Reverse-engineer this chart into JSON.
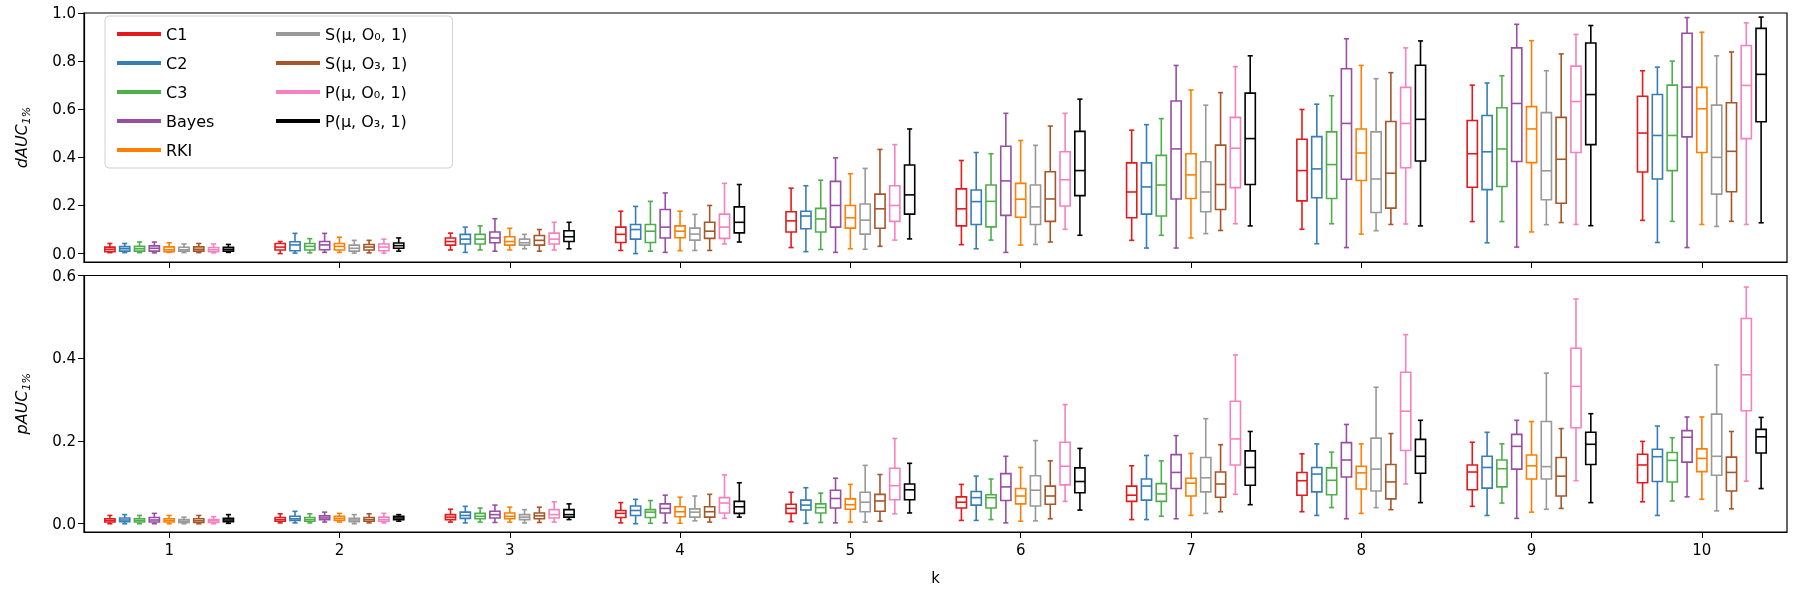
{
  "chart_data": [
    {
      "type": "box",
      "ylabel": "dAUC$_{1%}$",
      "categories": [
        "1",
        "2",
        "3",
        "4",
        "5",
        "6",
        "7",
        "8",
        "9",
        "10"
      ],
      "ylim": [
        -0.035,
        1.0
      ],
      "yticks": [
        {
          "value": 0,
          "label": "0.0"
        },
        {
          "value": 0.2,
          "label": "0.2"
        },
        {
          "value": 0.4,
          "label": "0.4"
        },
        {
          "value": 0.6,
          "label": "0.6"
        },
        {
          "value": 0.8,
          "label": "0.8"
        },
        {
          "value": 1,
          "label": "1.0"
        }
      ],
      "tick_labels": "y",
      "legend": "top left",
      "grid": false,
      "series": [
        {
          "name": "C1",
          "color": "#e41a1c",
          "boxes": [
            {
              "low": 0.004,
              "q1": 0.008,
              "median": 0.018,
              "q3": 0.027,
              "high": 0.042
            },
            {
              "low": 0.0,
              "q1": 0.015,
              "median": 0.027,
              "q3": 0.042,
              "high": 0.05
            },
            {
              "low": 0.015,
              "q1": 0.035,
              "median": 0.05,
              "q3": 0.065,
              "high": 0.085
            },
            {
              "low": 0.013,
              "q1": 0.046,
              "median": 0.08,
              "q3": 0.11,
              "high": 0.176
            },
            {
              "low": 0.025,
              "q1": 0.09,
              "median": 0.136,
              "q3": 0.174,
              "high": 0.272
            },
            {
              "low": 0.037,
              "q1": 0.115,
              "median": 0.186,
              "q3": 0.269,
              "high": 0.387
            },
            {
              "low": 0.055,
              "q1": 0.149,
              "median": 0.256,
              "q3": 0.377,
              "high": 0.513
            },
            {
              "low": 0.101,
              "q1": 0.219,
              "median": 0.345,
              "q3": 0.475,
              "high": 0.599
            },
            {
              "low": 0.133,
              "q1": 0.276,
              "median": 0.415,
              "q3": 0.553,
              "high": 0.7
            },
            {
              "low": 0.138,
              "q1": 0.339,
              "median": 0.501,
              "q3": 0.654,
              "high": 0.76
            }
          ]
        },
        {
          "name": "C2",
          "color": "#377eb8",
          "boxes": [
            {
              "low": 0.004,
              "q1": 0.01,
              "median": 0.02,
              "q3": 0.029,
              "high": 0.042
            },
            {
              "low": 0.002,
              "q1": 0.012,
              "median": 0.036,
              "q3": 0.049,
              "high": 0.084
            },
            {
              "low": 0.005,
              "q1": 0.04,
              "median": 0.06,
              "q3": 0.08,
              "high": 0.11
            },
            {
              "low": 0.0,
              "q1": 0.06,
              "median": 0.1,
              "q3": 0.121,
              "high": 0.196
            },
            {
              "low": 0.008,
              "q1": 0.103,
              "median": 0.156,
              "q3": 0.176,
              "high": 0.282
            },
            {
              "low": 0.02,
              "q1": 0.121,
              "median": 0.216,
              "q3": 0.264,
              "high": 0.42
            },
            {
              "low": 0.023,
              "q1": 0.164,
              "median": 0.277,
              "q3": 0.377,
              "high": 0.536
            },
            {
              "low": 0.041,
              "q1": 0.232,
              "median": 0.352,
              "q3": 0.486,
              "high": 0.621
            },
            {
              "low": 0.045,
              "q1": 0.266,
              "median": 0.423,
              "q3": 0.574,
              "high": 0.709
            },
            {
              "low": 0.046,
              "q1": 0.31,
              "median": 0.491,
              "q3": 0.661,
              "high": 0.775
            }
          ]
        },
        {
          "name": "C3",
          "color": "#4daf4a",
          "boxes": [
            {
              "low": 0.004,
              "q1": 0.01,
              "median": 0.02,
              "q3": 0.03,
              "high": 0.048
            },
            {
              "low": 0.003,
              "q1": 0.015,
              "median": 0.03,
              "q3": 0.042,
              "high": 0.062
            },
            {
              "low": 0.015,
              "q1": 0.04,
              "median": 0.06,
              "q3": 0.08,
              "high": 0.115
            },
            {
              "low": 0.01,
              "q1": 0.046,
              "median": 0.093,
              "q3": 0.121,
              "high": 0.217
            },
            {
              "low": 0.017,
              "q1": 0.09,
              "median": 0.144,
              "q3": 0.188,
              "high": 0.305
            },
            {
              "low": 0.056,
              "q1": 0.111,
              "median": 0.217,
              "q3": 0.285,
              "high": 0.415
            },
            {
              "low": 0.076,
              "q1": 0.156,
              "median": 0.285,
              "q3": 0.408,
              "high": 0.561
            },
            {
              "low": 0.124,
              "q1": 0.229,
              "median": 0.37,
              "q3": 0.506,
              "high": 0.656
            },
            {
              "low": 0.133,
              "q1": 0.279,
              "median": 0.435,
              "q3": 0.606,
              "high": 0.739
            },
            {
              "low": 0.134,
              "q1": 0.345,
              "median": 0.491,
              "q3": 0.7,
              "high": 0.8
            }
          ]
        },
        {
          "name": "Bayes",
          "color": "#984ea3",
          "boxes": [
            {
              "low": 0.003,
              "q1": 0.01,
              "median": 0.022,
              "q3": 0.032,
              "high": 0.048
            },
            {
              "low": 0.005,
              "q1": 0.016,
              "median": 0.036,
              "q3": 0.05,
              "high": 0.084
            },
            {
              "low": 0.01,
              "q1": 0.045,
              "median": 0.065,
              "q3": 0.09,
              "high": 0.145
            },
            {
              "low": 0.005,
              "q1": 0.065,
              "median": 0.11,
              "q3": 0.183,
              "high": 0.252
            },
            {
              "low": 0.005,
              "q1": 0.11,
              "median": 0.2,
              "q3": 0.3,
              "high": 0.398
            },
            {
              "low": 0.005,
              "q1": 0.159,
              "median": 0.302,
              "q3": 0.446,
              "high": 0.583
            },
            {
              "low": 0.023,
              "q1": 0.227,
              "median": 0.435,
              "q3": 0.634,
              "high": 0.782
            },
            {
              "low": 0.025,
              "q1": 0.309,
              "median": 0.541,
              "q3": 0.768,
              "high": 0.893
            },
            {
              "low": 0.027,
              "q1": 0.383,
              "median": 0.624,
              "q3": 0.855,
              "high": 0.953
            },
            {
              "low": 0.025,
              "q1": 0.485,
              "median": 0.692,
              "q3": 0.916,
              "high": 0.981
            }
          ]
        },
        {
          "name": "RKI",
          "color": "#ff7f00",
          "boxes": [
            {
              "low": 0.005,
              "q1": 0.008,
              "median": 0.016,
              "q3": 0.028,
              "high": 0.045
            },
            {
              "low": 0.005,
              "q1": 0.015,
              "median": 0.03,
              "q3": 0.042,
              "high": 0.068
            },
            {
              "low": 0.015,
              "q1": 0.035,
              "median": 0.05,
              "q3": 0.07,
              "high": 0.105
            },
            {
              "low": 0.012,
              "q1": 0.066,
              "median": 0.093,
              "q3": 0.115,
              "high": 0.176
            },
            {
              "low": 0.02,
              "q1": 0.106,
              "median": 0.149,
              "q3": 0.2,
              "high": 0.332
            },
            {
              "low": 0.035,
              "q1": 0.151,
              "median": 0.226,
              "q3": 0.292,
              "high": 0.47
            },
            {
              "low": 0.065,
              "q1": 0.229,
              "median": 0.327,
              "q3": 0.415,
              "high": 0.68
            },
            {
              "low": 0.081,
              "q1": 0.304,
              "median": 0.418,
              "q3": 0.518,
              "high": 0.782
            },
            {
              "low": 0.09,
              "q1": 0.378,
              "median": 0.518,
              "q3": 0.611,
              "high": 0.885
            },
            {
              "low": 0.121,
              "q1": 0.42,
              "median": 0.602,
              "q3": 0.691,
              "high": 0.92
            }
          ]
        },
        {
          "name": "S(μ, O₀, 1)",
          "color": "#999999",
          "boxes": [
            {
              "low": 0.004,
              "q1": 0.01,
              "median": 0.016,
              "q3": 0.026,
              "high": 0.04
            },
            {
              "low": 0.002,
              "q1": 0.01,
              "median": 0.022,
              "q3": 0.035,
              "high": 0.055
            },
            {
              "low": 0.02,
              "q1": 0.035,
              "median": 0.045,
              "q3": 0.06,
              "high": 0.08
            },
            {
              "low": 0.013,
              "q1": 0.056,
              "median": 0.081,
              "q3": 0.106,
              "high": 0.163
            },
            {
              "low": 0.018,
              "q1": 0.081,
              "median": 0.139,
              "q3": 0.206,
              "high": 0.354
            },
            {
              "low": 0.038,
              "q1": 0.121,
              "median": 0.194,
              "q3": 0.285,
              "high": 0.45
            },
            {
              "low": 0.083,
              "q1": 0.174,
              "median": 0.256,
              "q3": 0.382,
              "high": 0.617
            },
            {
              "low": 0.095,
              "q1": 0.171,
              "median": 0.31,
              "q3": 0.506,
              "high": 0.727
            },
            {
              "low": 0.12,
              "q1": 0.224,
              "median": 0.344,
              "q3": 0.586,
              "high": 0.76
            },
            {
              "low": 0.113,
              "q1": 0.247,
              "median": 0.4,
              "q3": 0.617,
              "high": 0.822
            }
          ]
        },
        {
          "name": "S(μ, O₃, 1)",
          "color": "#a65628",
          "boxes": [
            {
              "low": 0.004,
              "q1": 0.01,
              "median": 0.018,
              "q3": 0.028,
              "high": 0.042
            },
            {
              "low": 0.003,
              "q1": 0.015,
              "median": 0.027,
              "q3": 0.038,
              "high": 0.055
            },
            {
              "low": 0.01,
              "q1": 0.035,
              "median": 0.055,
              "q3": 0.075,
              "high": 0.1
            },
            {
              "low": 0.013,
              "q1": 0.063,
              "median": 0.093,
              "q3": 0.13,
              "high": 0.2
            },
            {
              "low": 0.03,
              "q1": 0.105,
              "median": 0.186,
              "q3": 0.247,
              "high": 0.433
            },
            {
              "low": 0.048,
              "q1": 0.134,
              "median": 0.227,
              "q3": 0.34,
              "high": 0.53
            },
            {
              "low": 0.096,
              "q1": 0.183,
              "median": 0.287,
              "q3": 0.451,
              "high": 0.669
            },
            {
              "low": 0.121,
              "q1": 0.189,
              "median": 0.334,
              "q3": 0.549,
              "high": 0.752
            },
            {
              "low": 0.129,
              "q1": 0.209,
              "median": 0.392,
              "q3": 0.566,
              "high": 0.83
            },
            {
              "low": 0.134,
              "q1": 0.257,
              "median": 0.425,
              "q3": 0.627,
              "high": 0.838
            }
          ]
        },
        {
          "name": "P(μ, O₀, 1)",
          "color": "#f781bf",
          "boxes": [
            {
              "low": 0.003,
              "q1": 0.008,
              "median": 0.016,
              "q3": 0.025,
              "high": 0.04
            },
            {
              "low": 0.002,
              "q1": 0.012,
              "median": 0.027,
              "q3": 0.04,
              "high": 0.06
            },
            {
              "low": 0.015,
              "q1": 0.04,
              "median": 0.06,
              "q3": 0.085,
              "high": 0.13
            },
            {
              "low": 0.04,
              "q1": 0.063,
              "median": 0.11,
              "q3": 0.164,
              "high": 0.292
            },
            {
              "low": 0.056,
              "q1": 0.134,
              "median": 0.2,
              "q3": 0.282,
              "high": 0.453
            },
            {
              "low": 0.101,
              "q1": 0.198,
              "median": 0.307,
              "q3": 0.423,
              "high": 0.583
            },
            {
              "low": 0.124,
              "q1": 0.274,
              "median": 0.438,
              "q3": 0.566,
              "high": 0.777
            },
            {
              "low": 0.123,
              "q1": 0.357,
              "median": 0.541,
              "q3": 0.691,
              "high": 0.855
            },
            {
              "low": 0.121,
              "q1": 0.42,
              "median": 0.632,
              "q3": 0.779,
              "high": 0.911
            },
            {
              "low": 0.121,
              "q1": 0.478,
              "median": 0.699,
              "q3": 0.865,
              "high": 0.959
            }
          ]
        },
        {
          "name": "P(μ, O₃, 1)",
          "color": "#000000",
          "boxes": [
            {
              "low": 0.005,
              "q1": 0.01,
              "median": 0.018,
              "q3": 0.026,
              "high": 0.038
            },
            {
              "low": 0.01,
              "q1": 0.022,
              "median": 0.033,
              "q3": 0.044,
              "high": 0.065
            },
            {
              "low": 0.02,
              "q1": 0.05,
              "median": 0.07,
              "q3": 0.095,
              "high": 0.13
            },
            {
              "low": 0.048,
              "q1": 0.086,
              "median": 0.13,
              "q3": 0.194,
              "high": 0.287
            },
            {
              "low": 0.061,
              "q1": 0.164,
              "median": 0.244,
              "q3": 0.368,
              "high": 0.518
            },
            {
              "low": 0.076,
              "q1": 0.241,
              "median": 0.345,
              "q3": 0.508,
              "high": 0.642
            },
            {
              "low": 0.115,
              "q1": 0.287,
              "median": 0.478,
              "q3": 0.667,
              "high": 0.822
            },
            {
              "low": 0.115,
              "q1": 0.385,
              "median": 0.558,
              "q3": 0.783,
              "high": 0.884
            },
            {
              "low": 0.116,
              "q1": 0.453,
              "median": 0.661,
              "q3": 0.875,
              "high": 0.948
            },
            {
              "low": 0.128,
              "q1": 0.548,
              "median": 0.745,
              "q3": 0.936,
              "high": 0.983
            }
          ]
        }
      ]
    },
    {
      "type": "box",
      "ylabel": "pAUC$_{1%}$",
      "xlabel": "k",
      "categories": [
        "1",
        "2",
        "3",
        "4",
        "5",
        "6",
        "7",
        "8",
        "9",
        "10"
      ],
      "ylim": [
        -0.02,
        0.6
      ],
      "yticks": [
        {
          "value": 0,
          "label": "0.0"
        },
        {
          "value": 0.2,
          "label": "0.2"
        },
        {
          "value": 0.4,
          "label": "0.4"
        },
        {
          "value": 0.6,
          "label": "0.6"
        }
      ],
      "grid": false,
      "series": [
        {
          "color": "#e41a1c",
          "boxes": [
            {
              "low": 0.0,
              "q1": 0.004,
              "median": 0.008,
              "q3": 0.012,
              "high": 0.02
            },
            {
              "low": 0.002,
              "q1": 0.006,
              "median": 0.01,
              "q3": 0.015,
              "high": 0.024
            },
            {
              "low": 0.004,
              "q1": 0.01,
              "median": 0.016,
              "q3": 0.022,
              "high": 0.035
            },
            {
              "low": 0.002,
              "q1": 0.015,
              "median": 0.025,
              "q3": 0.032,
              "high": 0.051
            },
            {
              "low": 0.005,
              "q1": 0.025,
              "median": 0.037,
              "q3": 0.047,
              "high": 0.076
            },
            {
              "low": 0.008,
              "q1": 0.038,
              "median": 0.052,
              "q3": 0.065,
              "high": 0.095
            },
            {
              "low": 0.01,
              "q1": 0.054,
              "median": 0.069,
              "q3": 0.091,
              "high": 0.14
            },
            {
              "low": 0.029,
              "q1": 0.069,
              "median": 0.104,
              "q3": 0.124,
              "high": 0.169
            },
            {
              "low": 0.042,
              "q1": 0.082,
              "median": 0.125,
              "q3": 0.142,
              "high": 0.197
            },
            {
              "low": 0.053,
              "q1": 0.099,
              "median": 0.142,
              "q3": 0.168,
              "high": 0.199
            }
          ]
        },
        {
          "color": "#377eb8",
          "boxes": [
            {
              "low": 0.0,
              "q1": 0.005,
              "median": 0.009,
              "q3": 0.014,
              "high": 0.022
            },
            {
              "low": 0.002,
              "q1": 0.008,
              "median": 0.012,
              "q3": 0.018,
              "high": 0.03
            },
            {
              "low": 0.002,
              "q1": 0.013,
              "median": 0.02,
              "q3": 0.028,
              "high": 0.042
            },
            {
              "low": 0.0,
              "q1": 0.02,
              "median": 0.032,
              "q3": 0.043,
              "high": 0.059
            },
            {
              "low": 0.001,
              "q1": 0.033,
              "median": 0.045,
              "q3": 0.057,
              "high": 0.087
            },
            {
              "low": 0.008,
              "q1": 0.045,
              "median": 0.063,
              "q3": 0.078,
              "high": 0.115
            },
            {
              "low": 0.01,
              "q1": 0.057,
              "median": 0.091,
              "q3": 0.108,
              "high": 0.165
            },
            {
              "low": 0.02,
              "q1": 0.077,
              "median": 0.12,
              "q3": 0.136,
              "high": 0.193
            },
            {
              "low": 0.02,
              "q1": 0.086,
              "median": 0.136,
              "q3": 0.163,
              "high": 0.221
            },
            {
              "low": 0.02,
              "q1": 0.102,
              "median": 0.162,
              "q3": 0.18,
              "high": 0.236
            }
          ]
        },
        {
          "color": "#4daf4a",
          "boxes": [
            {
              "low": 0.0,
              "q1": 0.004,
              "median": 0.008,
              "q3": 0.012,
              "high": 0.02
            },
            {
              "low": 0.002,
              "q1": 0.006,
              "median": 0.01,
              "q3": 0.015,
              "high": 0.024
            },
            {
              "low": 0.004,
              "q1": 0.012,
              "median": 0.018,
              "q3": 0.025,
              "high": 0.038
            },
            {
              "low": 0.001,
              "q1": 0.015,
              "median": 0.028,
              "q3": 0.034,
              "high": 0.056
            },
            {
              "low": 0.003,
              "q1": 0.026,
              "median": 0.039,
              "q3": 0.048,
              "high": 0.074
            },
            {
              "low": 0.01,
              "q1": 0.038,
              "median": 0.063,
              "q3": 0.07,
              "high": 0.108
            },
            {
              "low": 0.018,
              "q1": 0.054,
              "median": 0.072,
              "q3": 0.097,
              "high": 0.152
            },
            {
              "low": 0.039,
              "q1": 0.07,
              "median": 0.105,
              "q3": 0.135,
              "high": 0.173
            },
            {
              "low": 0.05,
              "q1": 0.089,
              "median": 0.133,
              "q3": 0.154,
              "high": 0.193
            },
            {
              "low": 0.055,
              "q1": 0.101,
              "median": 0.153,
              "q3": 0.172,
              "high": 0.208
            }
          ]
        },
        {
          "color": "#984ea3",
          "boxes": [
            {
              "low": 0.0,
              "q1": 0.004,
              "median": 0.009,
              "q3": 0.015,
              "high": 0.025
            },
            {
              "low": 0.004,
              "q1": 0.01,
              "median": 0.014,
              "q3": 0.019,
              "high": 0.028
            },
            {
              "low": 0.003,
              "q1": 0.014,
              "median": 0.022,
              "q3": 0.03,
              "high": 0.045
            },
            {
              "low": 0.002,
              "q1": 0.026,
              "median": 0.037,
              "q3": 0.048,
              "high": 0.069
            },
            {
              "low": 0.002,
              "q1": 0.038,
              "median": 0.061,
              "q3": 0.081,
              "high": 0.11
            },
            {
              "low": 0.002,
              "q1": 0.056,
              "median": 0.089,
              "q3": 0.121,
              "high": 0.163
            },
            {
              "low": 0.012,
              "q1": 0.085,
              "median": 0.124,
              "q3": 0.167,
              "high": 0.213
            },
            {
              "low": 0.012,
              "q1": 0.113,
              "median": 0.154,
              "q3": 0.196,
              "high": 0.24
            },
            {
              "low": 0.013,
              "q1": 0.132,
              "median": 0.187,
              "q3": 0.216,
              "high": 0.25
            },
            {
              "low": 0.065,
              "q1": 0.149,
              "median": 0.209,
              "q3": 0.225,
              "high": 0.258
            }
          ]
        },
        {
          "color": "#ff7f00",
          "boxes": [
            {
              "low": 0.0,
              "q1": 0.004,
              "median": 0.008,
              "q3": 0.012,
              "high": 0.02
            },
            {
              "low": 0.004,
              "q1": 0.008,
              "median": 0.013,
              "q3": 0.018,
              "high": 0.025
            },
            {
              "low": 0.004,
              "q1": 0.012,
              "median": 0.018,
              "q3": 0.026,
              "high": 0.04
            },
            {
              "low": 0.001,
              "q1": 0.017,
              "median": 0.029,
              "q3": 0.041,
              "high": 0.064
            },
            {
              "low": 0.004,
              "q1": 0.035,
              "median": 0.046,
              "q3": 0.06,
              "high": 0.095
            },
            {
              "low": 0.006,
              "q1": 0.048,
              "median": 0.067,
              "q3": 0.085,
              "high": 0.136
            },
            {
              "low": 0.02,
              "q1": 0.067,
              "median": 0.098,
              "q3": 0.11,
              "high": 0.17
            },
            {
              "low": 0.025,
              "q1": 0.084,
              "median": 0.123,
              "q3": 0.139,
              "high": 0.193
            },
            {
              "low": 0.028,
              "q1": 0.108,
              "median": 0.14,
              "q3": 0.166,
              "high": 0.247
            },
            {
              "low": 0.059,
              "q1": 0.126,
              "median": 0.158,
              "q3": 0.181,
              "high": 0.258
            }
          ]
        },
        {
          "color": "#999999",
          "boxes": [
            {
              "low": 0.0,
              "q1": 0.003,
              "median": 0.006,
              "q3": 0.01,
              "high": 0.016
            },
            {
              "low": 0.0,
              "q1": 0.005,
              "median": 0.009,
              "q3": 0.013,
              "high": 0.022
            },
            {
              "low": 0.002,
              "q1": 0.01,
              "median": 0.016,
              "q3": 0.022,
              "high": 0.034
            },
            {
              "low": 0.007,
              "q1": 0.016,
              "median": 0.028,
              "q3": 0.036,
              "high": 0.067
            },
            {
              "low": 0.004,
              "q1": 0.029,
              "median": 0.052,
              "q3": 0.076,
              "high": 0.141
            },
            {
              "low": 0.007,
              "q1": 0.043,
              "median": 0.081,
              "q3": 0.116,
              "high": 0.201
            },
            {
              "low": 0.025,
              "q1": 0.077,
              "median": 0.111,
              "q3": 0.16,
              "high": 0.254
            },
            {
              "low": 0.039,
              "q1": 0.079,
              "median": 0.132,
              "q3": 0.207,
              "high": 0.33
            },
            {
              "low": 0.035,
              "q1": 0.108,
              "median": 0.138,
              "q3": 0.247,
              "high": 0.364
            },
            {
              "low": 0.031,
              "q1": 0.117,
              "median": 0.163,
              "q3": 0.265,
              "high": 0.384
            }
          ]
        },
        {
          "color": "#a65628",
          "boxes": [
            {
              "low": 0.0,
              "q1": 0.003,
              "median": 0.007,
              "q3": 0.012,
              "high": 0.02
            },
            {
              "low": 0.002,
              "q1": 0.006,
              "median": 0.01,
              "q3": 0.015,
              "high": 0.024
            },
            {
              "low": 0.003,
              "q1": 0.012,
              "median": 0.019,
              "q3": 0.026,
              "high": 0.04
            },
            {
              "low": 0.004,
              "q1": 0.016,
              "median": 0.029,
              "q3": 0.041,
              "high": 0.071
            },
            {
              "low": 0.006,
              "q1": 0.03,
              "median": 0.055,
              "q3": 0.071,
              "high": 0.119
            },
            {
              "low": 0.012,
              "q1": 0.047,
              "median": 0.067,
              "q3": 0.091,
              "high": 0.152
            },
            {
              "low": 0.029,
              "q1": 0.064,
              "median": 0.096,
              "q3": 0.125,
              "high": 0.191
            },
            {
              "low": 0.034,
              "q1": 0.06,
              "median": 0.101,
              "q3": 0.143,
              "high": 0.218
            },
            {
              "low": 0.037,
              "q1": 0.067,
              "median": 0.115,
              "q3": 0.16,
              "high": 0.23
            },
            {
              "low": 0.036,
              "q1": 0.079,
              "median": 0.124,
              "q3": 0.161,
              "high": 0.223
            }
          ]
        },
        {
          "color": "#f781bf",
          "boxes": [
            {
              "low": 0.0,
              "q1": 0.003,
              "median": 0.007,
              "q3": 0.01,
              "high": 0.017
            },
            {
              "low": 0.002,
              "q1": 0.006,
              "median": 0.01,
              "q3": 0.016,
              "high": 0.025
            },
            {
              "low": 0.004,
              "q1": 0.014,
              "median": 0.022,
              "q3": 0.034,
              "high": 0.053
            },
            {
              "low": 0.013,
              "q1": 0.026,
              "median": 0.05,
              "q3": 0.063,
              "high": 0.118
            },
            {
              "low": 0.024,
              "q1": 0.058,
              "median": 0.092,
              "q3": 0.134,
              "high": 0.206
            },
            {
              "low": 0.054,
              "q1": 0.094,
              "median": 0.139,
              "q3": 0.197,
              "high": 0.288
            },
            {
              "low": 0.071,
              "q1": 0.142,
              "median": 0.205,
              "q3": 0.296,
              "high": 0.408
            },
            {
              "low": 0.096,
              "q1": 0.177,
              "median": 0.272,
              "q3": 0.366,
              "high": 0.457
            },
            {
              "low": 0.104,
              "q1": 0.232,
              "median": 0.332,
              "q3": 0.424,
              "high": 0.543
            },
            {
              "low": 0.103,
              "q1": 0.273,
              "median": 0.36,
              "q3": 0.496,
              "high": 0.572
            }
          ]
        },
        {
          "color": "#000000",
          "boxes": [
            {
              "low": 0.001,
              "q1": 0.005,
              "median": 0.009,
              "q3": 0.013,
              "high": 0.022
            },
            {
              "low": 0.006,
              "q1": 0.01,
              "median": 0.014,
              "q3": 0.018,
              "high": 0.022
            },
            {
              "low": 0.01,
              "q1": 0.016,
              "median": 0.022,
              "q3": 0.034,
              "high": 0.048
            },
            {
              "low": 0.016,
              "q1": 0.025,
              "median": 0.041,
              "q3": 0.054,
              "high": 0.099
            },
            {
              "low": 0.026,
              "q1": 0.058,
              "median": 0.082,
              "q3": 0.096,
              "high": 0.146
            },
            {
              "low": 0.033,
              "q1": 0.075,
              "median": 0.102,
              "q3": 0.135,
              "high": 0.182
            },
            {
              "low": 0.046,
              "q1": 0.093,
              "median": 0.136,
              "q3": 0.176,
              "high": 0.223
            },
            {
              "low": 0.051,
              "q1": 0.122,
              "median": 0.163,
              "q3": 0.204,
              "high": 0.25
            },
            {
              "low": 0.051,
              "q1": 0.143,
              "median": 0.192,
              "q3": 0.221,
              "high": 0.266
            },
            {
              "low": 0.085,
              "q1": 0.171,
              "median": 0.21,
              "q3": 0.228,
              "high": 0.257
            }
          ]
        }
      ]
    }
  ]
}
